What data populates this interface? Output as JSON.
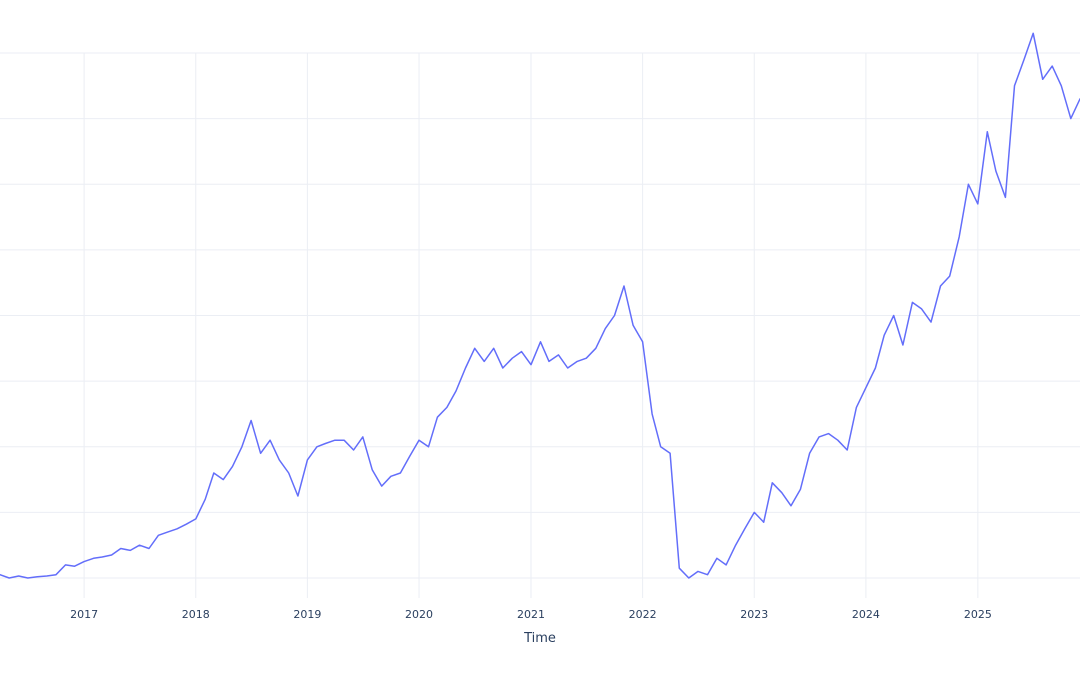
{
  "chart_data": {
    "type": "line",
    "title": "",
    "xlabel": "Time",
    "ylabel": "",
    "grid": true,
    "legend": "none",
    "line_color": "#636efa",
    "x_tick_labels": [
      "2017",
      "2018",
      "2019",
      "2020",
      "2021",
      "2022",
      "2023",
      "2024",
      "2025"
    ],
    "xlim": [
      "2016-04-01",
      "2025-12-01"
    ],
    "ylim": [
      0,
      8
    ],
    "y_gridlines": [
      0,
      1,
      2,
      3,
      4,
      5,
      6,
      7,
      8
    ],
    "series": [
      {
        "values": [
          [
            "2016-04-01",
            0.05
          ],
          [
            "2016-05-01",
            0.0
          ],
          [
            "2016-06-01",
            0.03
          ],
          [
            "2016-07-01",
            0.0
          ],
          [
            "2016-08-01",
            0.02
          ],
          [
            "2016-09-01",
            0.03
          ],
          [
            "2016-10-01",
            0.05
          ],
          [
            "2016-11-01",
            0.2
          ],
          [
            "2016-12-01",
            0.18
          ],
          [
            "2017-01-01",
            0.25
          ],
          [
            "2017-02-01",
            0.3
          ],
          [
            "2017-03-01",
            0.32
          ],
          [
            "2017-04-01",
            0.35
          ],
          [
            "2017-05-01",
            0.45
          ],
          [
            "2017-06-01",
            0.42
          ],
          [
            "2017-07-01",
            0.5
          ],
          [
            "2017-08-01",
            0.45
          ],
          [
            "2017-09-01",
            0.65
          ],
          [
            "2017-10-01",
            0.7
          ],
          [
            "2017-11-01",
            0.75
          ],
          [
            "2017-12-01",
            0.82
          ],
          [
            "2018-01-01",
            0.9
          ],
          [
            "2018-02-01",
            1.2
          ],
          [
            "2018-03-01",
            1.6
          ],
          [
            "2018-04-01",
            1.5
          ],
          [
            "2018-05-01",
            1.7
          ],
          [
            "2018-06-01",
            2.0
          ],
          [
            "2018-07-01",
            2.4
          ],
          [
            "2018-08-01",
            1.9
          ],
          [
            "2018-09-01",
            2.1
          ],
          [
            "2018-10-01",
            1.8
          ],
          [
            "2018-11-01",
            1.6
          ],
          [
            "2018-12-01",
            1.25
          ],
          [
            "2019-01-01",
            1.8
          ],
          [
            "2019-02-01",
            2.0
          ],
          [
            "2019-03-01",
            2.05
          ],
          [
            "2019-04-01",
            2.1
          ],
          [
            "2019-05-01",
            2.1
          ],
          [
            "2019-06-01",
            1.95
          ],
          [
            "2019-07-01",
            2.15
          ],
          [
            "2019-08-01",
            1.65
          ],
          [
            "2019-09-01",
            1.4
          ],
          [
            "2019-10-01",
            1.55
          ],
          [
            "2019-11-01",
            1.6
          ],
          [
            "2019-12-01",
            1.85
          ],
          [
            "2020-01-01",
            2.1
          ],
          [
            "2020-02-01",
            2.0
          ],
          [
            "2020-03-01",
            2.45
          ],
          [
            "2020-04-01",
            2.6
          ],
          [
            "2020-05-01",
            2.85
          ],
          [
            "2020-06-01",
            3.2
          ],
          [
            "2020-07-01",
            3.5
          ],
          [
            "2020-08-01",
            3.3
          ],
          [
            "2020-09-01",
            3.5
          ],
          [
            "2020-10-01",
            3.2
          ],
          [
            "2020-11-01",
            3.35
          ],
          [
            "2020-12-01",
            3.45
          ],
          [
            "2021-01-01",
            3.25
          ],
          [
            "2021-02-01",
            3.6
          ],
          [
            "2021-03-01",
            3.3
          ],
          [
            "2021-04-01",
            3.4
          ],
          [
            "2021-05-01",
            3.2
          ],
          [
            "2021-06-01",
            3.3
          ],
          [
            "2021-07-01",
            3.35
          ],
          [
            "2021-08-01",
            3.5
          ],
          [
            "2021-09-01",
            3.8
          ],
          [
            "2021-10-01",
            4.0
          ],
          [
            "2021-11-01",
            4.45
          ],
          [
            "2021-12-01",
            3.85
          ],
          [
            "2022-01-01",
            3.6
          ],
          [
            "2022-02-01",
            2.5
          ],
          [
            "2022-03-01",
            2.0
          ],
          [
            "2022-04-01",
            1.9
          ],
          [
            "2022-05-01",
            0.15
          ],
          [
            "2022-06-01",
            0.0
          ],
          [
            "2022-07-01",
            0.1
          ],
          [
            "2022-08-01",
            0.05
          ],
          [
            "2022-09-01",
            0.3
          ],
          [
            "2022-10-01",
            0.2
          ],
          [
            "2022-11-01",
            0.5
          ],
          [
            "2022-12-01",
            0.75
          ],
          [
            "2023-01-01",
            1.0
          ],
          [
            "2023-02-01",
            0.85
          ],
          [
            "2023-03-01",
            1.45
          ],
          [
            "2023-04-01",
            1.3
          ],
          [
            "2023-05-01",
            1.1
          ],
          [
            "2023-06-01",
            1.35
          ],
          [
            "2023-07-01",
            1.9
          ],
          [
            "2023-08-01",
            2.15
          ],
          [
            "2023-09-01",
            2.2
          ],
          [
            "2023-10-01",
            2.1
          ],
          [
            "2023-11-01",
            1.95
          ],
          [
            "2023-12-01",
            2.6
          ],
          [
            "2024-01-01",
            2.9
          ],
          [
            "2024-02-01",
            3.2
          ],
          [
            "2024-03-01",
            3.7
          ],
          [
            "2024-04-01",
            4.0
          ],
          [
            "2024-05-01",
            3.55
          ],
          [
            "2024-06-01",
            4.2
          ],
          [
            "2024-07-01",
            4.1
          ],
          [
            "2024-08-01",
            3.9
          ],
          [
            "2024-09-01",
            4.45
          ],
          [
            "2024-10-01",
            4.6
          ],
          [
            "2024-11-01",
            5.2
          ],
          [
            "2024-12-01",
            6.0
          ],
          [
            "2025-01-01",
            5.7
          ],
          [
            "2025-02-01",
            6.8
          ],
          [
            "2025-03-01",
            6.2
          ],
          [
            "2025-04-01",
            5.8
          ],
          [
            "2025-05-01",
            7.5
          ],
          [
            "2025-06-01",
            7.9
          ],
          [
            "2025-07-01",
            8.3
          ],
          [
            "2025-08-01",
            7.6
          ],
          [
            "2025-09-01",
            7.8
          ],
          [
            "2025-10-01",
            7.5
          ],
          [
            "2025-11-01",
            7.0
          ],
          [
            "2025-12-01",
            7.3
          ]
        ]
      }
    ]
  }
}
